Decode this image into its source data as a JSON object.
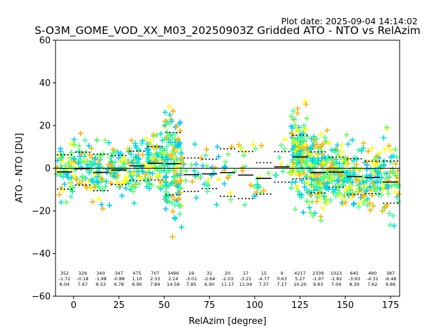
{
  "plot_date": "Plot date: 2025-09-04 14:14:02",
  "chart_data": {
    "type": "scatter",
    "title": "S-O3M_GOME_VOD_XX_M03_20250903Z Gridded ATO - NTO vs RelAzim",
    "xlabel": "RelAzim [degree]",
    "ylabel": "ATO - NTO [DU]",
    "xlim": [
      -10,
      180
    ],
    "ylim": [
      -60,
      60
    ],
    "xticks": [
      0,
      25,
      50,
      75,
      100,
      125,
      150,
      175
    ],
    "yticks": [
      -60,
      -40,
      -20,
      0,
      20,
      40,
      60
    ],
    "marker": "+",
    "colors": [
      "#00c8ff",
      "#ffb000",
      "#ffff00",
      "#40ff9a",
      "#60ff60",
      "#00e0d0"
    ],
    "zero_line": 0,
    "bins": [
      {
        "x_start": -10,
        "x_end": 0,
        "count": "352",
        "mean": "-1.72",
        "std": "8.04"
      },
      {
        "x_start": 0,
        "x_end": 10,
        "count": "329",
        "mean": "-0.18",
        "std": "7.67"
      },
      {
        "x_start": 10,
        "x_end": 20,
        "count": "340",
        "mean": "-1.98",
        "std": "8.53"
      },
      {
        "x_start": 20,
        "x_end": 30,
        "count": "347",
        "mean": "-0.88",
        "std": "6.78"
      },
      {
        "x_start": 30,
        "x_end": 40,
        "count": "475",
        "mean": "1.10",
        "std": "6.90"
      },
      {
        "x_start": 40,
        "x_end": 50,
        "count": "707",
        "mean": "2.33",
        "std": "7.84"
      },
      {
        "x_start": 50,
        "x_end": 60,
        "count": "3496",
        "mean": "2.14",
        "std": "14.58"
      },
      {
        "x_start": 60,
        "x_end": 70,
        "count": "19",
        "mean": "-3.01",
        "std": "7.85"
      },
      {
        "x_start": 70,
        "x_end": 80,
        "count": "31",
        "mean": "-2.64",
        "std": "6.90"
      },
      {
        "x_start": 80,
        "x_end": 90,
        "count": "20",
        "mean": "-2.03",
        "std": "11.17"
      },
      {
        "x_start": 90,
        "x_end": 100,
        "count": "17",
        "mean": "-3.21",
        "std": "11.04"
      },
      {
        "x_start": 100,
        "x_end": 110,
        "count": "15",
        "mean": "-4.77",
        "std": "7.37"
      },
      {
        "x_start": 110,
        "x_end": 120,
        "count": "9",
        "mean": "0.63",
        "std": "7.17"
      },
      {
        "x_start": 120,
        "x_end": 130,
        "count": "4217",
        "mean": "5.27",
        "std": "10.20"
      },
      {
        "x_start": 130,
        "x_end": 140,
        "count": "2339",
        "mean": "-1.97",
        "std": "9.63"
      },
      {
        "x_start": 140,
        "x_end": 150,
        "count": "1023",
        "mean": "-1.82",
        "std": "7.04"
      },
      {
        "x_start": 150,
        "x_end": 160,
        "count": "645",
        "mean": "-3.93",
        "std": "8.39"
      },
      {
        "x_start": 160,
        "x_end": 170,
        "count": "490",
        "mean": "-4.31",
        "std": "7.62"
      },
      {
        "x_start": 170,
        "x_end": 180,
        "count": "387",
        "mean": "-6.48",
        "std": "9.86"
      }
    ]
  }
}
